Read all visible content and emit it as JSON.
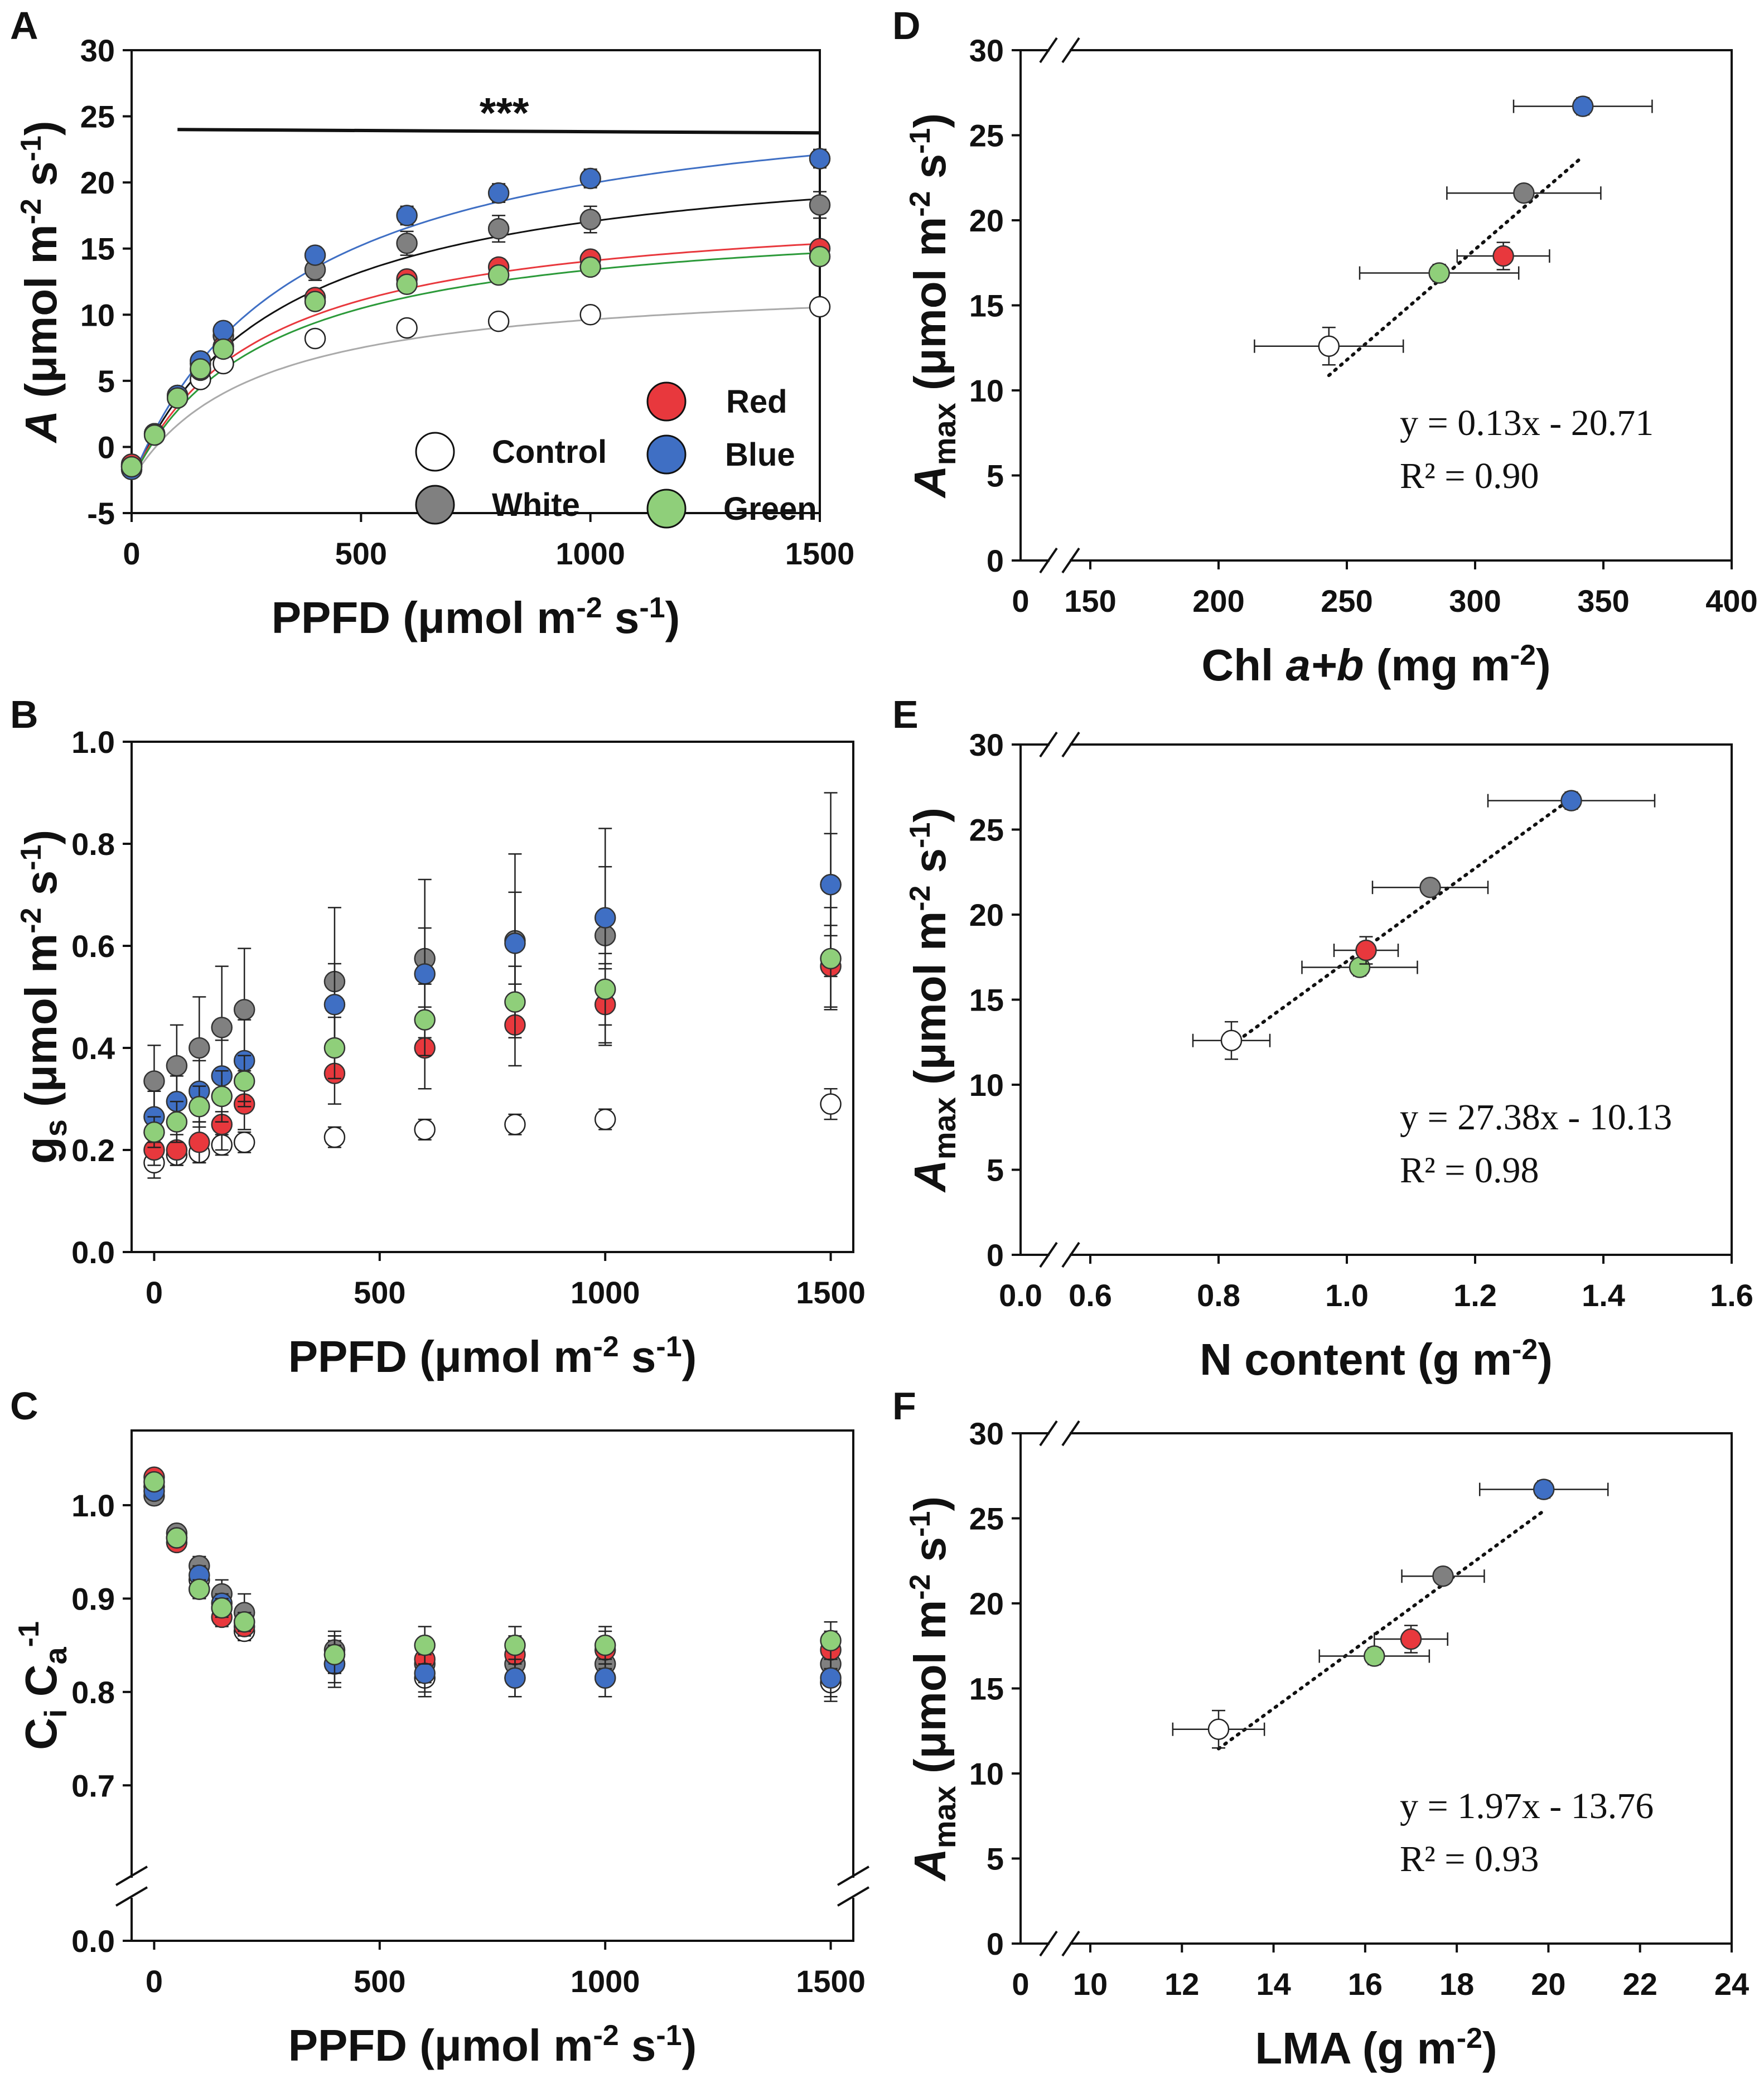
{
  "colors": {
    "Control": "#ffffff",
    "White": "#808080",
    "Red": "#e8383d",
    "Blue": "#3f6fc4",
    "Green": "#8fcf7a"
  },
  "chart_data": [
    {
      "panel": "A",
      "type": "scatter",
      "xlabel": "PPFD (μmol m-2 s-1)",
      "ylabel": "A (μmol m-2 s-1)",
      "xlim": [
        0,
        1500
      ],
      "ylim": [
        -5,
        30
      ],
      "xticks": [
        0,
        500,
        1000,
        1500
      ],
      "yticks": [
        -5,
        0,
        5,
        10,
        15,
        20,
        25,
        30
      ],
      "x": [
        0,
        50,
        100,
        150,
        200,
        400,
        600,
        800,
        1000,
        1500
      ],
      "series": [
        {
          "name": "Control",
          "values": [
            -1.5,
            1.0,
            3.8,
            5.1,
            6.3,
            8.2,
            9.0,
            9.5,
            10.0,
            10.6
          ],
          "err": [
            0.4,
            0.4,
            0.4,
            0.4,
            0.4,
            0.5,
            0.5,
            0.5,
            0.5,
            0.6
          ]
        },
        {
          "name": "White",
          "values": [
            -1.4,
            1.0,
            3.9,
            6.3,
            8.4,
            13.4,
            15.4,
            16.5,
            17.2,
            18.3
          ],
          "err": [
            0.4,
            0.4,
            0.5,
            0.6,
            0.7,
            0.8,
            0.9,
            1.0,
            1.0,
            1.0
          ]
        },
        {
          "name": "Red",
          "values": [
            -1.3,
            0.9,
            3.7,
            5.8,
            7.6,
            11.3,
            12.7,
            13.6,
            14.2,
            15.0
          ],
          "err": [
            0.4,
            0.4,
            0.4,
            0.5,
            0.5,
            0.6,
            0.6,
            0.6,
            0.6,
            0.6
          ]
        },
        {
          "name": "Blue",
          "values": [
            -1.7,
            1.0,
            3.9,
            6.5,
            8.8,
            14.5,
            17.5,
            19.2,
            20.3,
            21.8
          ],
          "err": [
            0.4,
            0.4,
            0.5,
            0.5,
            0.6,
            0.6,
            0.7,
            0.7,
            0.7,
            0.7
          ]
        },
        {
          "name": "Green",
          "values": [
            -1.5,
            0.9,
            3.7,
            5.9,
            7.4,
            11.0,
            12.3,
            13.0,
            13.6,
            14.4
          ],
          "err": [
            0.4,
            0.4,
            0.4,
            0.5,
            0.5,
            0.5,
            0.5,
            0.5,
            0.5,
            0.5
          ]
        }
      ],
      "fits": [
        {
          "name": "Control",
          "pmax": 12.9,
          "k": 270,
          "rd": -2.5
        },
        {
          "name": "White",
          "pmax": 23.3,
          "k": 320,
          "rd": -2.5
        },
        {
          "name": "Red",
          "pmax": 18.7,
          "k": 280,
          "rd": -2.5
        },
        {
          "name": "Blue",
          "pmax": 28.0,
          "k": 360,
          "rd": -2.5
        },
        {
          "name": "Green",
          "pmax": 18.0,
          "k": 290,
          "rd": -2.5
        }
      ],
      "significance": {
        "label": "***",
        "x_range": [
          100,
          1500
        ],
        "y": 24
      }
    },
    {
      "panel": "B",
      "type": "scatter",
      "xlabel": "PPFD (μmol m-2 s-1)",
      "ylabel": "gs (μmol m-2 s-1)",
      "xlim": [
        -50,
        1550
      ],
      "ylim": [
        0.0,
        1.0
      ],
      "xticks": [
        0,
        500,
        1000,
        1500
      ],
      "yticks": [
        "0.0",
        "0.2",
        "0.4",
        "0.6",
        "0.8",
        "1.0"
      ],
      "x": [
        0,
        50,
        100,
        150,
        200,
        400,
        600,
        800,
        1000,
        1500
      ],
      "series": [
        {
          "name": "Control",
          "values": [
            0.175,
            0.19,
            0.195,
            0.21,
            0.215,
            0.225,
            0.24,
            0.25,
            0.26,
            0.29
          ],
          "err": [
            0.03,
            0.02,
            0.02,
            0.02,
            0.02,
            0.02,
            0.02,
            0.02,
            0.02,
            0.03
          ]
        },
        {
          "name": "White",
          "values": [
            0.335,
            0.365,
            0.4,
            0.44,
            0.475,
            0.53,
            0.575,
            0.61,
            0.62,
            0.72
          ],
          "err": [
            0.07,
            0.08,
            0.1,
            0.12,
            0.12,
            0.145,
            0.155,
            0.17,
            0.21,
            0.18
          ]
        },
        {
          "name": "Red",
          "values": [
            0.2,
            0.2,
            0.215,
            0.25,
            0.29,
            0.35,
            0.4,
            0.445,
            0.485,
            0.56
          ],
          "err": [
            0.03,
            0.03,
            0.04,
            0.05,
            0.05,
            0.06,
            0.08,
            0.08,
            0.08,
            0.08
          ]
        },
        {
          "name": "Blue",
          "values": [
            0.265,
            0.295,
            0.315,
            0.345,
            0.375,
            0.485,
            0.545,
            0.605,
            0.655,
            0.72
          ],
          "err": [
            0.05,
            0.05,
            0.06,
            0.07,
            0.08,
            0.08,
            0.09,
            0.1,
            0.1,
            0.1
          ]
        },
        {
          "name": "Green",
          "values": [
            0.235,
            0.255,
            0.285,
            0.305,
            0.335,
            0.4,
            0.455,
            0.49,
            0.515,
            0.575
          ],
          "err": [
            0.03,
            0.04,
            0.04,
            0.05,
            0.05,
            0.06,
            0.07,
            0.07,
            0.07,
            0.1
          ]
        }
      ]
    },
    {
      "panel": "C",
      "type": "scatter",
      "xlabel": "PPFD (μmol m-2 s-1)",
      "ylabel": "Ci Ca-1",
      "xlim": [
        -50,
        1550
      ],
      "ylim": [
        0.65,
        1.08
      ],
      "xticks": [
        0,
        500,
        1000,
        1500
      ],
      "yticks": [
        "0.7",
        "0.8",
        "0.9",
        "1.0"
      ],
      "axis_break": "0.0",
      "x": [
        0,
        50,
        100,
        150,
        200,
        400,
        600,
        800,
        1000,
        1500
      ],
      "series": [
        {
          "name": "Control",
          "values": [
            1.02,
            0.965,
            0.92,
            0.89,
            0.865,
            0.83,
            0.815,
            0.815,
            0.815,
            0.81
          ],
          "err": [
            0.005,
            0.005,
            0.01,
            0.01,
            0.01,
            0.025,
            0.02,
            0.02,
            0.02,
            0.02
          ]
        },
        {
          "name": "White",
          "values": [
            1.01,
            0.97,
            0.935,
            0.905,
            0.885,
            0.845,
            0.83,
            0.83,
            0.83,
            0.83
          ],
          "err": [
            0.005,
            0.005,
            0.01,
            0.015,
            0.02,
            0.02,
            0.02,
            0.02,
            0.02,
            0.02
          ]
        },
        {
          "name": "Red",
          "values": [
            1.03,
            0.96,
            0.91,
            0.88,
            0.87,
            0.84,
            0.835,
            0.84,
            0.845,
            0.845
          ],
          "err": [
            0.005,
            0.005,
            0.01,
            0.01,
            0.01,
            0.02,
            0.02,
            0.02,
            0.02,
            0.02
          ]
        },
        {
          "name": "Blue",
          "values": [
            1.015,
            0.965,
            0.925,
            0.895,
            0.875,
            0.83,
            0.82,
            0.815,
            0.815,
            0.815
          ],
          "err": [
            0.005,
            0.005,
            0.01,
            0.01,
            0.01,
            0.02,
            0.02,
            0.02,
            0.02,
            0.02
          ]
        },
        {
          "name": "Green",
          "values": [
            1.025,
            0.965,
            0.91,
            0.89,
            0.875,
            0.84,
            0.85,
            0.85,
            0.85,
            0.855
          ],
          "err": [
            0.005,
            0.005,
            0.01,
            0.01,
            0.01,
            0.02,
            0.02,
            0.02,
            0.02,
            0.02
          ]
        }
      ]
    },
    {
      "panel": "D",
      "type": "scatter",
      "xlabel": "Chl a+b (mg m-2)",
      "ylabel": "Amax (μmol m-2 s-1)",
      "xlim": [
        150,
        400
      ],
      "ylim": [
        0,
        30
      ],
      "xticks": [
        150,
        200,
        250,
        300,
        350,
        400
      ],
      "yticks": [
        0,
        5,
        10,
        15,
        20,
        25,
        30
      ],
      "x_axis_break": "0",
      "series": [
        {
          "name": "Control",
          "x": 243,
          "y": 12.6,
          "xerr": 29,
          "yerr": 1.1
        },
        {
          "name": "Green",
          "x": 286,
          "y": 16.9,
          "xerr": 31,
          "yerr": 0.5
        },
        {
          "name": "Red",
          "x": 311,
          "y": 17.9,
          "xerr": 18,
          "yerr": 0.8
        },
        {
          "name": "White",
          "x": 319,
          "y": 21.6,
          "xerr": 30,
          "yerr": 0.4
        },
        {
          "name": "Blue",
          "x": 342,
          "y": 26.7,
          "xerr": 27,
          "yerr": 0.5
        }
      ],
      "trendline": {
        "slope": 0.13,
        "intercept": -20.71,
        "x_range": [
          243,
          342
        ]
      },
      "equation": "y = 0.13x - 20.71",
      "r2": "R² = 0.90"
    },
    {
      "panel": "E",
      "type": "scatter",
      "xlabel": "N content (g m-2)",
      "ylabel": "Amax (μmol m-2 s-1)",
      "xlim": [
        0.6,
        1.6
      ],
      "ylim": [
        0,
        30
      ],
      "xticks": [
        "0.6",
        "0.8",
        "1.0",
        "1.2",
        "1.4",
        "1.6"
      ],
      "yticks": [
        0,
        5,
        10,
        15,
        20,
        25,
        30
      ],
      "x_axis_break": "0.0",
      "series": [
        {
          "name": "Control",
          "x": 0.82,
          "y": 12.6,
          "xerr": 0.06,
          "yerr": 1.1
        },
        {
          "name": "Green",
          "x": 1.02,
          "y": 16.9,
          "xerr": 0.09,
          "yerr": 0.5
        },
        {
          "name": "Red",
          "x": 1.03,
          "y": 17.9,
          "xerr": 0.05,
          "yerr": 0.8
        },
        {
          "name": "White",
          "x": 1.13,
          "y": 21.6,
          "xerr": 0.09,
          "yerr": 0.4
        },
        {
          "name": "Blue",
          "x": 1.35,
          "y": 26.7,
          "xerr": 0.13,
          "yerr": 0.5
        }
      ],
      "trendline": {
        "slope": 27.38,
        "intercept": -10.13,
        "x_range": [
          0.82,
          1.35
        ]
      },
      "equation": "y = 27.38x - 10.13",
      "r2": "R² = 0.98"
    },
    {
      "panel": "F",
      "type": "scatter",
      "xlabel": "LMA (g m-2)",
      "ylabel": "Amax (μmol m-2 s-1)",
      "xlim": [
        10,
        24
      ],
      "ylim": [
        0,
        30
      ],
      "xticks": [
        10,
        12,
        14,
        16,
        18,
        20,
        22,
        24
      ],
      "yticks": [
        0,
        5,
        10,
        15,
        20,
        25,
        30
      ],
      "x_axis_break": "0",
      "series": [
        {
          "name": "Control",
          "x": 12.8,
          "y": 12.6,
          "xerr": 1.0,
          "yerr": 1.1
        },
        {
          "name": "Green",
          "x": 16.2,
          "y": 16.9,
          "xerr": 1.2,
          "yerr": 0.5
        },
        {
          "name": "Red",
          "x": 17.0,
          "y": 17.9,
          "xerr": 0.8,
          "yerr": 0.8
        },
        {
          "name": "White",
          "x": 17.7,
          "y": 21.6,
          "xerr": 0.9,
          "yerr": 0.4
        },
        {
          "name": "Blue",
          "x": 19.9,
          "y": 26.7,
          "xerr": 1.4,
          "yerr": 0.5
        }
      ],
      "trendline": {
        "slope": 1.97,
        "intercept": -13.76,
        "x_range": [
          12.8,
          19.9
        ]
      },
      "equation": "y = 1.97x - 13.76",
      "r2": "R² = 0.93"
    }
  ],
  "legend": [
    "Control",
    "White",
    "Red",
    "Blue",
    "Green"
  ]
}
